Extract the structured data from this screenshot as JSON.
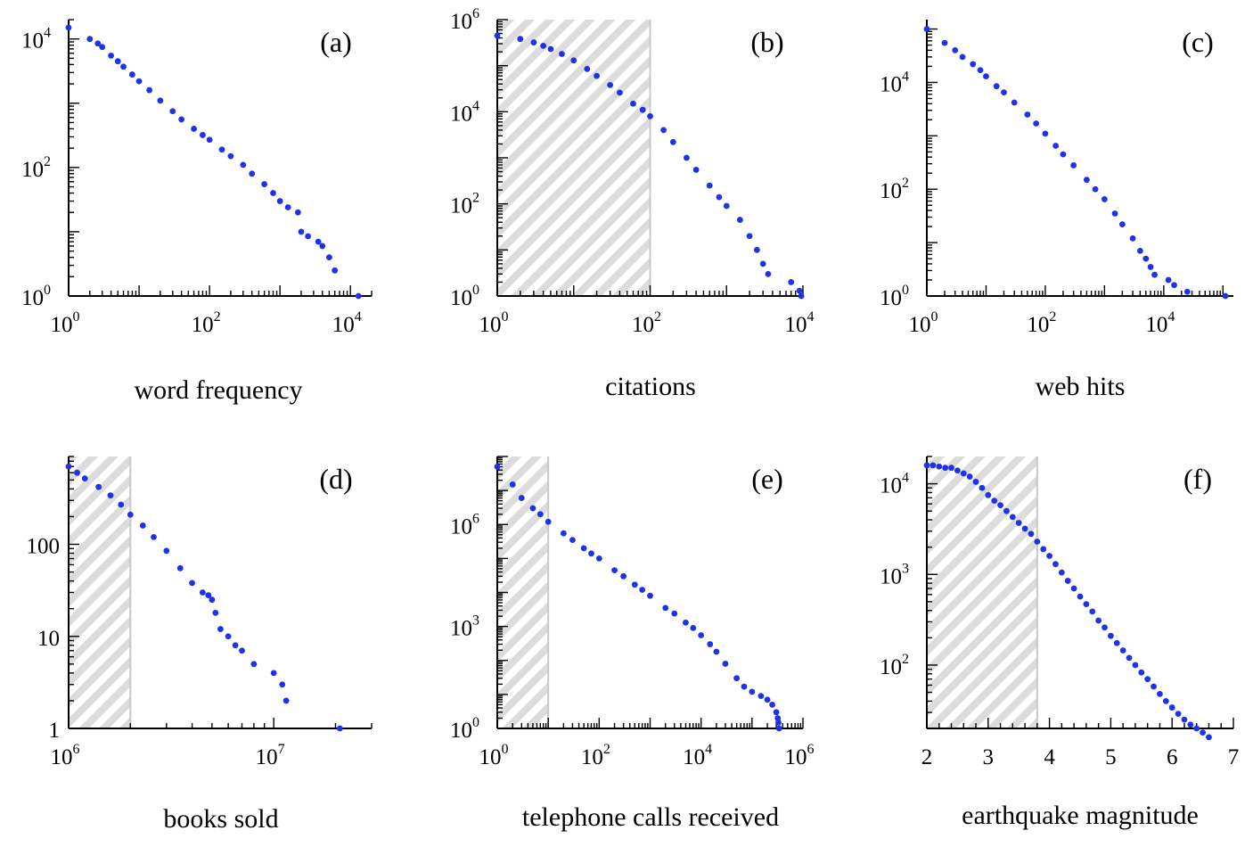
{
  "colors": {
    "points": "#1f32e6",
    "shade": "#dcdcdc",
    "hatch": "#f3f3f3"
  },
  "chart_data": [
    {
      "type": "scatter",
      "panel": "(a)",
      "xlabel": "word frequency",
      "xscale": "log",
      "yscale": "log",
      "xlim": [
        1,
        20000
      ],
      "ylim": [
        1,
        20000
      ],
      "xticks": [
        {
          "b": "10",
          "e": "0"
        },
        {
          "b": "10",
          "e": "2"
        },
        {
          "b": "10",
          "e": "4"
        }
      ],
      "yticks": [
        {
          "b": "10",
          "e": "0"
        },
        {
          "b": "10",
          "e": "2"
        },
        {
          "b": "10",
          "e": "4"
        }
      ],
      "shaded_xmax": null,
      "points": [
        [
          1,
          15000
        ],
        [
          2,
          10000
        ],
        [
          2.6,
          8500
        ],
        [
          3,
          7500
        ],
        [
          4,
          5500
        ],
        [
          5,
          4500
        ],
        [
          6,
          3700
        ],
        [
          8,
          2800
        ],
        [
          10,
          2200
        ],
        [
          14,
          1600
        ],
        [
          20,
          1100
        ],
        [
          30,
          750
        ],
        [
          40,
          560
        ],
        [
          60,
          400
        ],
        [
          80,
          320
        ],
        [
          100,
          270
        ],
        [
          150,
          190
        ],
        [
          200,
          150
        ],
        [
          300,
          110
        ],
        [
          400,
          80
        ],
        [
          600,
          55
        ],
        [
          800,
          40
        ],
        [
          1000,
          30
        ],
        [
          1300,
          24
        ],
        [
          1800,
          20
        ],
        [
          2000,
          10
        ],
        [
          2500,
          8.5
        ],
        [
          3500,
          7
        ],
        [
          4000,
          6
        ],
        [
          5000,
          4
        ],
        [
          6000,
          2.5
        ],
        [
          13000,
          1
        ]
      ]
    },
    {
      "type": "scatter",
      "panel": "(b)",
      "xlabel": "citations",
      "xscale": "log",
      "yscale": "log",
      "xlim": [
        1,
        10000
      ],
      "ylim": [
        1,
        1000000
      ],
      "xticks": [
        {
          "b": "10",
          "e": "0"
        },
        {
          "b": "10",
          "e": "2"
        },
        {
          "b": "10",
          "e": "4"
        }
      ],
      "yticks": [
        {
          "b": "10",
          "e": "0"
        },
        {
          "b": "10",
          "e": "2"
        },
        {
          "b": "10",
          "e": "4"
        },
        {
          "b": "10",
          "e": "6"
        }
      ],
      "shaded_xmax": 100,
      "points": [
        [
          1,
          450000
        ],
        [
          2,
          380000
        ],
        [
          3,
          320000
        ],
        [
          4,
          270000
        ],
        [
          5,
          230000
        ],
        [
          7,
          180000
        ],
        [
          10,
          130000
        ],
        [
          15,
          85000
        ],
        [
          20,
          60000
        ],
        [
          30,
          38000
        ],
        [
          40,
          26000
        ],
        [
          60,
          15000
        ],
        [
          80,
          11000
        ],
        [
          100,
          8000
        ],
        [
          150,
          4000
        ],
        [
          200,
          2200
        ],
        [
          300,
          1000
        ],
        [
          400,
          550
        ],
        [
          600,
          250
        ],
        [
          800,
          140
        ],
        [
          1000,
          90
        ],
        [
          1500,
          45
        ],
        [
          2000,
          20
        ],
        [
          2500,
          10
        ],
        [
          3000,
          5
        ],
        [
          3500,
          3
        ],
        [
          7000,
          2
        ],
        [
          9000,
          1.3
        ],
        [
          9500,
          1
        ]
      ]
    },
    {
      "type": "scatter",
      "panel": "(c)",
      "xlabel": "web hits",
      "xscale": "log",
      "yscale": "log",
      "xlim": [
        1,
        150000
      ],
      "ylim": [
        1,
        150000
      ],
      "xticks": [
        {
          "b": "10",
          "e": "0"
        },
        {
          "b": "10",
          "e": "2"
        },
        {
          "b": "10",
          "e": "4"
        }
      ],
      "yticks": [
        {
          "b": "10",
          "e": "0"
        },
        {
          "b": "10",
          "e": "2"
        },
        {
          "b": "10",
          "e": "4"
        }
      ],
      "shaded_xmax": null,
      "points": [
        [
          1,
          100000
        ],
        [
          2,
          55000
        ],
        [
          3,
          40000
        ],
        [
          4,
          30000
        ],
        [
          6,
          22000
        ],
        [
          8,
          17000
        ],
        [
          10,
          13000
        ],
        [
          15,
          8500
        ],
        [
          20,
          6500
        ],
        [
          30,
          4200
        ],
        [
          50,
          2500
        ],
        [
          70,
          1700
        ],
        [
          100,
          1100
        ],
        [
          150,
          650
        ],
        [
          200,
          450
        ],
        [
          300,
          280
        ],
        [
          500,
          150
        ],
        [
          700,
          100
        ],
        [
          1000,
          65
        ],
        [
          1500,
          35
        ],
        [
          2000,
          22
        ],
        [
          3000,
          12
        ],
        [
          4000,
          7
        ],
        [
          5000,
          5
        ],
        [
          6000,
          3.5
        ],
        [
          7000,
          2.5
        ],
        [
          12000,
          2
        ],
        [
          15000,
          1.6
        ],
        [
          25000,
          1.2
        ],
        [
          110000,
          1
        ]
      ]
    },
    {
      "type": "scatter",
      "panel": "(d)",
      "xlabel": "books sold",
      "xscale": "log",
      "yscale": "log",
      "xlim": [
        1000000,
        30000000
      ],
      "ylim": [
        1,
        900
      ],
      "xticks": [
        {
          "b": "10",
          "e": "6"
        },
        {
          "b": "10",
          "e": "7"
        }
      ],
      "yticks": [
        {
          "b": "1",
          "e": ""
        },
        {
          "b": "10",
          "e": ""
        },
        {
          "b": "100",
          "e": ""
        }
      ],
      "shaded_xmax": 2000000,
      "points": [
        [
          1000000,
          700
        ],
        [
          1100000,
          600
        ],
        [
          1200000,
          520
        ],
        [
          1400000,
          420
        ],
        [
          1600000,
          340
        ],
        [
          1800000,
          270
        ],
        [
          2000000,
          210
        ],
        [
          2300000,
          160
        ],
        [
          2600000,
          120
        ],
        [
          3000000,
          85
        ],
        [
          3500000,
          55
        ],
        [
          4000000,
          38
        ],
        [
          4500000,
          30
        ],
        [
          4800000,
          28
        ],
        [
          5000000,
          25
        ],
        [
          5200000,
          18
        ],
        [
          5500000,
          12
        ],
        [
          6000000,
          10
        ],
        [
          6500000,
          8
        ],
        [
          7000000,
          7
        ],
        [
          8000000,
          5
        ],
        [
          10000000,
          4
        ],
        [
          11000000,
          3
        ],
        [
          11500000,
          2
        ],
        [
          21000000,
          1
        ]
      ]
    },
    {
      "type": "scatter",
      "panel": "(e)",
      "xlabel": "telephone calls received",
      "xscale": "log",
      "yscale": "log",
      "xlim": [
        1,
        1000000
      ],
      "ylim": [
        1,
        100000000
      ],
      "xticks": [
        {
          "b": "10",
          "e": "0"
        },
        {
          "b": "10",
          "e": "2"
        },
        {
          "b": "10",
          "e": "4"
        },
        {
          "b": "10",
          "e": "6"
        }
      ],
      "yticks": [
        {
          "b": "10",
          "e": "0"
        },
        {
          "b": "10",
          "e": "3"
        },
        {
          "b": "10",
          "e": "6"
        }
      ],
      "shaded_xmax": 10,
      "points": [
        [
          1,
          50000000
        ],
        [
          2,
          15000000
        ],
        [
          3,
          6000000
        ],
        [
          5,
          3000000
        ],
        [
          7,
          2000000
        ],
        [
          10,
          1200000
        ],
        [
          20,
          550000
        ],
        [
          30,
          350000
        ],
        [
          50,
          200000
        ],
        [
          70,
          140000
        ],
        [
          100,
          100000
        ],
        [
          200,
          45000
        ],
        [
          300,
          30000
        ],
        [
          500,
          17000
        ],
        [
          700,
          12000
        ],
        [
          1000,
          8000
        ],
        [
          2000,
          3500
        ],
        [
          3000,
          2400
        ],
        [
          5000,
          1300
        ],
        [
          7000,
          900
        ],
        [
          10000,
          550
        ],
        [
          15000,
          300
        ],
        [
          20000,
          180
        ],
        [
          30000,
          80
        ],
        [
          50000,
          30
        ],
        [
          70000,
          17
        ],
        [
          100000,
          12
        ],
        [
          150000,
          9
        ],
        [
          200000,
          7
        ],
        [
          250000,
          5
        ],
        [
          300000,
          3
        ],
        [
          320000,
          2
        ],
        [
          330000,
          1.5
        ],
        [
          340000,
          1
        ]
      ]
    },
    {
      "type": "scatter",
      "panel": "(f)",
      "xlabel": "earthquake magnitude",
      "xscale": "linear",
      "yscale": "log",
      "xlim": [
        2,
        7
      ],
      "ylim": [
        20,
        20000
      ],
      "xticks": [
        {
          "b": "2",
          "e": ""
        },
        {
          "b": "3",
          "e": ""
        },
        {
          "b": "4",
          "e": ""
        },
        {
          "b": "5",
          "e": ""
        },
        {
          "b": "6",
          "e": ""
        },
        {
          "b": "7",
          "e": ""
        }
      ],
      "yticks": [
        {
          "b": "10",
          "e": "2"
        },
        {
          "b": "10",
          "e": "3"
        },
        {
          "b": "10",
          "e": "4"
        }
      ],
      "shaded_xmax": 3.8,
      "points": [
        [
          2,
          16000
        ],
        [
          2.1,
          16000
        ],
        [
          2.2,
          15500
        ],
        [
          2.3,
          15000
        ],
        [
          2.4,
          15000
        ],
        [
          2.5,
          14000
        ],
        [
          2.6,
          13000
        ],
        [
          2.7,
          12000
        ],
        [
          2.8,
          10500
        ],
        [
          2.9,
          9000
        ],
        [
          3,
          7500
        ],
        [
          3.1,
          6500
        ],
        [
          3.2,
          5800
        ],
        [
          3.3,
          5000
        ],
        [
          3.4,
          4300
        ],
        [
          3.5,
          3700
        ],
        [
          3.6,
          3200
        ],
        [
          3.7,
          2800
        ],
        [
          3.8,
          2300
        ],
        [
          3.9,
          1900
        ],
        [
          4,
          1600
        ],
        [
          4.1,
          1300
        ],
        [
          4.2,
          1050
        ],
        [
          4.3,
          850
        ],
        [
          4.4,
          700
        ],
        [
          4.5,
          570
        ],
        [
          4.6,
          470
        ],
        [
          4.7,
          390
        ],
        [
          4.8,
          310
        ],
        [
          4.9,
          260
        ],
        [
          5,
          210
        ],
        [
          5.1,
          175
        ],
        [
          5.2,
          145
        ],
        [
          5.3,
          120
        ],
        [
          5.4,
          100
        ],
        [
          5.5,
          83
        ],
        [
          5.6,
          70
        ],
        [
          5.7,
          58
        ],
        [
          5.8,
          48
        ],
        [
          5.9,
          40
        ],
        [
          6,
          34
        ],
        [
          6.1,
          29
        ],
        [
          6.2,
          25
        ],
        [
          6.3,
          22
        ],
        [
          6.4,
          20
        ],
        [
          6.5,
          18
        ],
        [
          6.6,
          16
        ]
      ]
    }
  ]
}
